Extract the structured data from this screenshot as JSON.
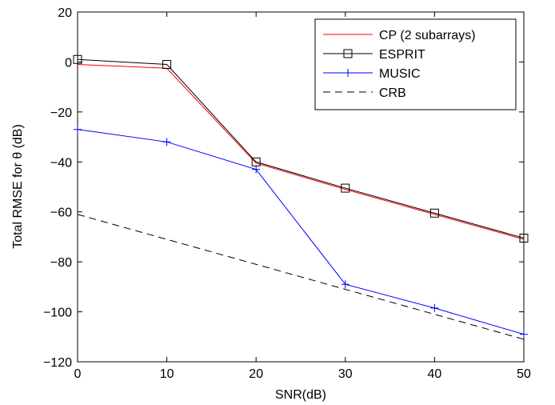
{
  "chart_data": {
    "type": "line",
    "title": "",
    "xlabel": "SNR(dB)",
    "ylabel": "Total RMSE for θ (dB)",
    "x": [
      0,
      10,
      20,
      30,
      40,
      50
    ],
    "xlim": [
      0,
      50
    ],
    "ylim": [
      -120,
      20
    ],
    "xticks": [
      0,
      10,
      20,
      30,
      40,
      50
    ],
    "yticks": [
      20,
      0,
      -20,
      -40,
      -60,
      -80,
      -100,
      -120
    ],
    "xtick_labels": [
      "0",
      "10",
      "20",
      "30",
      "40",
      "50"
    ],
    "ytick_labels": [
      "20",
      "0",
      "−20",
      "−40",
      "−60",
      "−80",
      "−100",
      "−120"
    ],
    "grid": false,
    "legend_position": "top-right",
    "series": [
      {
        "name": "CP (2 subarrays)",
        "color": "#ff0000",
        "dash": "solid",
        "marker": "none",
        "values": [
          -1,
          -2.5,
          -40.5,
          -51,
          -61,
          -71
        ]
      },
      {
        "name": "ESPRIT",
        "color": "#000000",
        "dash": "solid",
        "marker": "square",
        "values": [
          1,
          -1,
          -40,
          -50.5,
          -60.5,
          -70.5
        ]
      },
      {
        "name": "MUSIC",
        "color": "#0000ff",
        "dash": "solid",
        "marker": "plus",
        "values": [
          -27,
          -32,
          -43,
          -89,
          -98.5,
          -109
        ]
      },
      {
        "name": "CRB",
        "color": "#000000",
        "dash": "dashed",
        "marker": "none",
        "values": [
          -61,
          -71,
          -81,
          -91,
          -101,
          -111
        ]
      }
    ]
  }
}
